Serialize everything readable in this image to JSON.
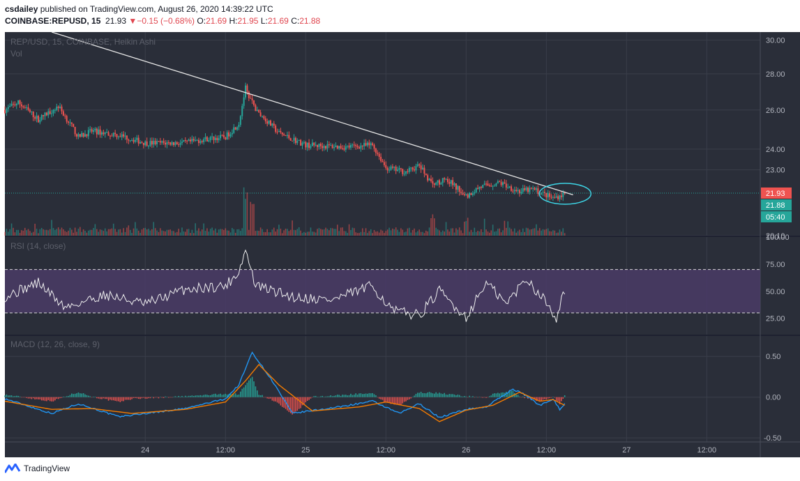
{
  "header": {
    "publisher": "csdailey",
    "published_text": "published on TradingView.com, August 26, 2020 14:39:22 UTC",
    "symbol": "COINBASE:REPUSD, 15",
    "last": "21.93",
    "change_arrow": "▼",
    "change": "−0.15 (−0.68%)",
    "o_label": "O:",
    "o_value": "21.69",
    "h_label": "H:",
    "h_value": "21.95",
    "l_label": "L:",
    "l_value": "21.69",
    "c_label": "C:",
    "c_value": "21.88"
  },
  "footer": {
    "brand": "TradingView",
    "logo_icon": "tradingview-logo-icon"
  },
  "colors": {
    "background": "#2a2e39",
    "grid": "#3a3e4a",
    "up": "#26a69a",
    "down": "#ef5350",
    "rsi_band": "#4a3b66",
    "macd_line": "#2196f3",
    "signal_line": "#f57c00",
    "accent_red": "#e0464f"
  },
  "chart_data": [
    {
      "type": "candlestick",
      "title": "REP/USD, 15, COINBASE, Heikin Ashi",
      "volume_label": "Vol",
      "y_scale": "log",
      "y_ticks": [
        "30.00",
        "28.00",
        "26.00",
        "24.00",
        "23.00",
        "20.10"
      ],
      "ylim": [
        20.1,
        30.5
      ],
      "x_ticks": [
        "24",
        "12:00",
        "25",
        "12:00",
        "26",
        "12:00",
        "27",
        "12:00"
      ],
      "x_range": [
        "2020-08-23 03:00",
        "2020-08-27 20:00"
      ],
      "candles_series": {
        "x_start": "2020-08-23 03:00",
        "x_end": "2020-08-26 14:45",
        "interval": "15m",
        "close_anchors": [
          {
            "t": "2020-08-23 03:00",
            "v": 26.0
          },
          {
            "t": "2020-08-23 05:00",
            "v": 26.4
          },
          {
            "t": "2020-08-23 08:00",
            "v": 25.5
          },
          {
            "t": "2020-08-23 11:00",
            "v": 26.2
          },
          {
            "t": "2020-08-23 14:00",
            "v": 24.6
          },
          {
            "t": "2020-08-23 16:00",
            "v": 24.9
          },
          {
            "t": "2020-08-23 20:00",
            "v": 24.7
          },
          {
            "t": "2020-08-24 00:00",
            "v": 24.3
          },
          {
            "t": "2020-08-24 06:00",
            "v": 24.3
          },
          {
            "t": "2020-08-24 09:00",
            "v": 24.5
          },
          {
            "t": "2020-08-24 12:00",
            "v": 24.6
          },
          {
            "t": "2020-08-24 14:00",
            "v": 25.3
          },
          {
            "t": "2020-08-24 15:00",
            "v": 27.2
          },
          {
            "t": "2020-08-24 16:30",
            "v": 26.0
          },
          {
            "t": "2020-08-24 20:00",
            "v": 24.8
          },
          {
            "t": "2020-08-25 00:00",
            "v": 24.2
          },
          {
            "t": "2020-08-25 06:00",
            "v": 24.1
          },
          {
            "t": "2020-08-25 10:00",
            "v": 24.2
          },
          {
            "t": "2020-08-25 12:00",
            "v": 23.1
          },
          {
            "t": "2020-08-25 15:00",
            "v": 22.9
          },
          {
            "t": "2020-08-25 17:00",
            "v": 23.2
          },
          {
            "t": "2020-08-25 19:00",
            "v": 22.3
          },
          {
            "t": "2020-08-25 21:00",
            "v": 22.6
          },
          {
            "t": "2020-08-26 00:00",
            "v": 21.8
          },
          {
            "t": "2020-08-26 02:00",
            "v": 22.2
          },
          {
            "t": "2020-08-26 05:00",
            "v": 22.4
          },
          {
            "t": "2020-08-26 08:00",
            "v": 22.0
          },
          {
            "t": "2020-08-26 10:00",
            "v": 22.1
          },
          {
            "t": "2020-08-26 13:00",
            "v": 21.7
          },
          {
            "t": "2020-08-26 14:45",
            "v": 21.9
          }
        ],
        "volume_spikes": [
          {
            "t": "2020-08-24 15:00",
            "v": 1.0
          },
          {
            "t": "2020-08-24 16:00",
            "v": 0.8
          },
          {
            "t": "2020-08-25 19:00",
            "v": 0.5
          },
          {
            "t": "2020-08-26 00:00",
            "v": 0.4
          }
        ]
      },
      "trendline": {
        "from": {
          "t": "2020-08-23 10:00",
          "v": 30.5
        },
        "to": {
          "t": "2020-08-26 16:00",
          "v": 21.85
        }
      },
      "highlight_ellipse": {
        "t": "2020-08-26 14:30",
        "v": 21.9
      },
      "price_labels": [
        {
          "text": "21.93",
          "color": "#ef5350",
          "v": 21.93
        },
        {
          "text": "21.88",
          "color": "#26a69a"
        },
        {
          "text": "05:40",
          "color": "#26a69a"
        }
      ],
      "current_price_line": 21.93
    },
    {
      "type": "line",
      "title": "RSI (14, close)",
      "y_ticks": [
        "100.00",
        "75.00",
        "50.00",
        "25.00"
      ],
      "ylim": [
        10,
        100
      ],
      "band": [
        30,
        70
      ],
      "anchors": [
        {
          "t": "2020-08-23 03:00",
          "v": 45
        },
        {
          "t": "2020-08-23 08:00",
          "v": 58
        },
        {
          "t": "2020-08-23 12:00",
          "v": 35
        },
        {
          "t": "2020-08-23 18:00",
          "v": 47
        },
        {
          "t": "2020-08-24 00:00",
          "v": 38
        },
        {
          "t": "2020-08-24 06:00",
          "v": 52
        },
        {
          "t": "2020-08-24 12:00",
          "v": 55
        },
        {
          "t": "2020-08-24 14:00",
          "v": 68
        },
        {
          "t": "2020-08-24 15:00",
          "v": 88
        },
        {
          "t": "2020-08-24 16:30",
          "v": 55
        },
        {
          "t": "2020-08-24 22:00",
          "v": 45
        },
        {
          "t": "2020-08-25 04:00",
          "v": 42
        },
        {
          "t": "2020-08-25 10:00",
          "v": 55
        },
        {
          "t": "2020-08-25 13:00",
          "v": 32
        },
        {
          "t": "2020-08-25 17:00",
          "v": 28
        },
        {
          "t": "2020-08-25 20:00",
          "v": 50
        },
        {
          "t": "2020-08-26 00:00",
          "v": 26
        },
        {
          "t": "2020-08-26 03:00",
          "v": 58
        },
        {
          "t": "2020-08-26 06:00",
          "v": 38
        },
        {
          "t": "2020-08-26 09:00",
          "v": 62
        },
        {
          "t": "2020-08-26 12:00",
          "v": 40
        },
        {
          "t": "2020-08-26 13:30",
          "v": 26
        },
        {
          "t": "2020-08-26 14:45",
          "v": 52
        }
      ]
    },
    {
      "type": "line",
      "title": "MACD (12, 26, close, 9)",
      "y_ticks": [
        "0.50",
        "0.00",
        "-0.50"
      ],
      "ylim": [
        -0.55,
        0.75
      ],
      "series": [
        {
          "key": "macd",
          "anchors": [
            {
              "t": "2020-08-23 03:00",
              "v": -0.02
            },
            {
              "t": "2020-08-23 10:00",
              "v": -0.2
            },
            {
              "t": "2020-08-23 14:00",
              "v": -0.08
            },
            {
              "t": "2020-08-23 20:00",
              "v": -0.24
            },
            {
              "t": "2020-08-24 06:00",
              "v": -0.14
            },
            {
              "t": "2020-08-24 12:00",
              "v": -0.02
            },
            {
              "t": "2020-08-24 14:00",
              "v": 0.15
            },
            {
              "t": "2020-08-24 16:00",
              "v": 0.55
            },
            {
              "t": "2020-08-24 19:00",
              "v": 0.2
            },
            {
              "t": "2020-08-24 22:00",
              "v": -0.2
            },
            {
              "t": "2020-08-25 05:00",
              "v": -0.12
            },
            {
              "t": "2020-08-25 10:00",
              "v": -0.05
            },
            {
              "t": "2020-08-25 14:00",
              "v": -0.2
            },
            {
              "t": "2020-08-25 17:00",
              "v": -0.08
            },
            {
              "t": "2020-08-25 20:00",
              "v": -0.25
            },
            {
              "t": "2020-08-26 00:00",
              "v": -0.15
            },
            {
              "t": "2020-08-26 03:00",
              "v": -0.12
            },
            {
              "t": "2020-08-26 07:00",
              "v": 0.1
            },
            {
              "t": "2020-08-26 09:00",
              "v": 0.02
            },
            {
              "t": "2020-08-26 11:00",
              "v": -0.1
            },
            {
              "t": "2020-08-26 13:00",
              "v": -0.02
            },
            {
              "t": "2020-08-26 14:00",
              "v": -0.15
            },
            {
              "t": "2020-08-26 14:45",
              "v": -0.08
            }
          ]
        },
        {
          "key": "signal",
          "anchors": [
            {
              "t": "2020-08-23 03:00",
              "v": -0.05
            },
            {
              "t": "2020-08-23 10:00",
              "v": -0.15
            },
            {
              "t": "2020-08-23 16:00",
              "v": -0.14
            },
            {
              "t": "2020-08-23 22:00",
              "v": -0.2
            },
            {
              "t": "2020-08-24 06:00",
              "v": -0.15
            },
            {
              "t": "2020-08-24 12:00",
              "v": -0.06
            },
            {
              "t": "2020-08-24 15:00",
              "v": 0.2
            },
            {
              "t": "2020-08-24 17:00",
              "v": 0.4
            },
            {
              "t": "2020-08-24 20:00",
              "v": 0.15
            },
            {
              "t": "2020-08-25 01:00",
              "v": -0.17
            },
            {
              "t": "2020-08-25 08:00",
              "v": -0.12
            },
            {
              "t": "2020-08-25 12:00",
              "v": -0.06
            },
            {
              "t": "2020-08-25 17:00",
              "v": -0.14
            },
            {
              "t": "2020-08-25 20:00",
              "v": -0.3
            },
            {
              "t": "2020-08-26 00:00",
              "v": -0.16
            },
            {
              "t": "2020-08-26 04:00",
              "v": -0.1
            },
            {
              "t": "2020-08-26 08:00",
              "v": 0.06
            },
            {
              "t": "2020-08-26 11:00",
              "v": -0.05
            },
            {
              "t": "2020-08-26 13:00",
              "v": -0.03
            },
            {
              "t": "2020-08-26 14:45",
              "v": -0.1
            }
          ]
        }
      ]
    }
  ]
}
